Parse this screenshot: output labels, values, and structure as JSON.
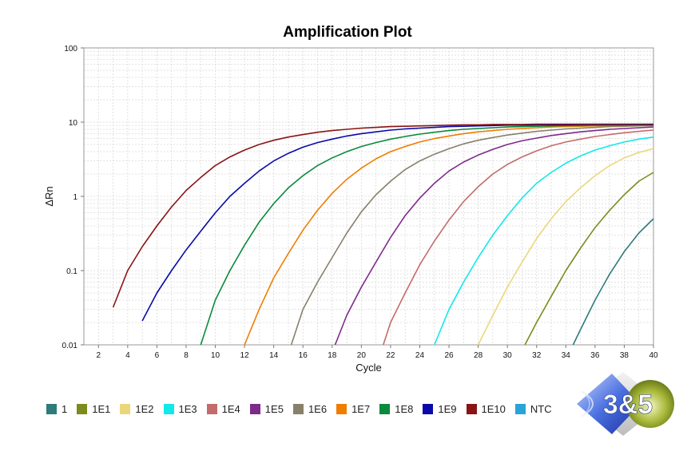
{
  "chart_data": {
    "type": "line",
    "title": "Amplification Plot",
    "xlabel": "Cycle",
    "ylabel": "ΔRn",
    "yscale": "log",
    "xlim": [
      1,
      40
    ],
    "ylim": [
      0.01,
      100
    ],
    "xticks": [
      2,
      4,
      6,
      8,
      10,
      12,
      14,
      16,
      18,
      20,
      22,
      24,
      26,
      28,
      30,
      32,
      34,
      36,
      38,
      40
    ],
    "yticks": [
      0.01,
      0.1,
      1,
      10,
      100
    ],
    "ytick_labels": [
      "0.01",
      "0.1",
      "1",
      "10",
      "100"
    ],
    "grid": true,
    "legend_position": "bottom-left",
    "series": [
      {
        "name": "1",
        "color": "#2e7b7b",
        "x": [
          34.5,
          35,
          36,
          37,
          38,
          39,
          40
        ],
        "y": [
          0.01,
          0.016,
          0.04,
          0.09,
          0.18,
          0.32,
          0.5
        ]
      },
      {
        "name": "1E1",
        "color": "#7e8a1e",
        "x": [
          31.2,
          32,
          33,
          34,
          35,
          36,
          37,
          38,
          39,
          40
        ],
        "y": [
          0.01,
          0.02,
          0.045,
          0.1,
          0.2,
          0.38,
          0.65,
          1.05,
          1.6,
          2.1
        ]
      },
      {
        "name": "1E2",
        "color": "#ebd77b",
        "x": [
          28,
          29,
          30,
          31,
          32,
          33,
          34,
          35,
          36,
          37,
          38,
          39,
          40
        ],
        "y": [
          0.01,
          0.025,
          0.06,
          0.13,
          0.27,
          0.5,
          0.85,
          1.3,
          1.9,
          2.6,
          3.3,
          3.9,
          4.4
        ]
      },
      {
        "name": "1E3",
        "color": "#12e8e8",
        "x": [
          25,
          26,
          27,
          28,
          29,
          30,
          31,
          32,
          33,
          34,
          35,
          36,
          37,
          38,
          39,
          40
        ],
        "y": [
          0.01,
          0.03,
          0.07,
          0.15,
          0.3,
          0.55,
          0.95,
          1.5,
          2.1,
          2.8,
          3.5,
          4.2,
          4.8,
          5.4,
          5.9,
          6.3
        ]
      },
      {
        "name": "1E4",
        "color": "#c46b6b",
        "x": [
          21.5,
          22,
          23,
          24,
          25,
          26,
          27,
          28,
          29,
          30,
          31,
          32,
          33,
          34,
          35,
          36,
          37,
          38,
          39,
          40
        ],
        "y": [
          0.01,
          0.02,
          0.05,
          0.12,
          0.25,
          0.48,
          0.85,
          1.35,
          2.0,
          2.7,
          3.4,
          4.1,
          4.8,
          5.4,
          5.9,
          6.4,
          6.8,
          7.2,
          7.5,
          7.8
        ]
      },
      {
        "name": "1E5",
        "color": "#7d2a8a",
        "x": [
          18.2,
          19,
          20,
          21,
          22,
          23,
          24,
          25,
          26,
          27,
          28,
          29,
          30,
          31,
          32,
          33,
          34,
          35,
          36,
          37,
          38,
          39,
          40
        ],
        "y": [
          0.01,
          0.025,
          0.06,
          0.13,
          0.28,
          0.55,
          0.95,
          1.5,
          2.2,
          2.9,
          3.6,
          4.3,
          5.0,
          5.6,
          6.1,
          6.6,
          7.0,
          7.4,
          7.7,
          8.0,
          8.2,
          8.4,
          8.6
        ]
      },
      {
        "name": "1E6",
        "color": "#87806a",
        "x": [
          15.2,
          16,
          17,
          18,
          19,
          20,
          21,
          22,
          23,
          24,
          25,
          26,
          27,
          28,
          29,
          30,
          31,
          32,
          33,
          34,
          35,
          36,
          37,
          38,
          39,
          40
        ],
        "y": [
          0.01,
          0.03,
          0.07,
          0.15,
          0.32,
          0.62,
          1.05,
          1.6,
          2.3,
          3.0,
          3.7,
          4.4,
          5.1,
          5.7,
          6.2,
          6.7,
          7.1,
          7.5,
          7.8,
          8.1,
          8.3,
          8.5,
          8.7,
          8.8,
          8.9,
          9.0
        ]
      },
      {
        "name": "1E7",
        "color": "#f07d00",
        "x": [
          12,
          13,
          14,
          15,
          16,
          17,
          18,
          19,
          20,
          21,
          22,
          23,
          24,
          25,
          26,
          27,
          28,
          29,
          30,
          31,
          32,
          33,
          34,
          35,
          36,
          37,
          38,
          39,
          40
        ],
        "y": [
          0.01,
          0.03,
          0.08,
          0.17,
          0.35,
          0.65,
          1.1,
          1.7,
          2.4,
          3.2,
          4.0,
          4.7,
          5.4,
          6.0,
          6.5,
          7.0,
          7.4,
          7.7,
          8.0,
          8.2,
          8.4,
          8.6,
          8.7,
          8.8,
          8.9,
          9.0,
          9.0,
          9.1,
          9.1
        ]
      },
      {
        "name": "1E8",
        "color": "#0a8a3c",
        "x": [
          9,
          10,
          11,
          12,
          13,
          14,
          15,
          16,
          17,
          18,
          19,
          20,
          21,
          22,
          23,
          24,
          25,
          26,
          27,
          28,
          29,
          30,
          31,
          32,
          33,
          34,
          35,
          36,
          37,
          38,
          39,
          40
        ],
        "y": [
          0.01,
          0.04,
          0.1,
          0.22,
          0.45,
          0.8,
          1.3,
          1.9,
          2.6,
          3.3,
          4.0,
          4.7,
          5.3,
          5.9,
          6.4,
          6.9,
          7.3,
          7.7,
          8.0,
          8.2,
          8.4,
          8.6,
          8.7,
          8.8,
          8.9,
          9.0,
          9.0,
          9.1,
          9.1,
          9.1,
          9.2,
          9.2
        ]
      },
      {
        "name": "1E9",
        "color": "#0a0aa8",
        "x": [
          5,
          6,
          7,
          8,
          9,
          10,
          11,
          12,
          13,
          14,
          15,
          16,
          17,
          18,
          19,
          20,
          21,
          22,
          23,
          24,
          25,
          26,
          27,
          28,
          29,
          30,
          31,
          32,
          33,
          34,
          35,
          36,
          37,
          38,
          39,
          40
        ],
        "y": [
          0.021,
          0.05,
          0.1,
          0.19,
          0.34,
          0.6,
          1.0,
          1.5,
          2.2,
          3.0,
          3.8,
          4.6,
          5.3,
          5.9,
          6.5,
          7.0,
          7.4,
          7.8,
          8.1,
          8.3,
          8.5,
          8.7,
          8.8,
          8.9,
          9.0,
          9.1,
          9.1,
          9.2,
          9.2,
          9.2,
          9.3,
          9.3,
          9.3,
          9.3,
          9.3,
          9.3
        ]
      },
      {
        "name": "1E10",
        "color": "#8a1414",
        "x": [
          3,
          4,
          5,
          6,
          7,
          8,
          9,
          10,
          11,
          12,
          13,
          14,
          15,
          16,
          17,
          18,
          19,
          20,
          21,
          22,
          23,
          24,
          25,
          26,
          27,
          28,
          29,
          30,
          31,
          32,
          33,
          34,
          35,
          36,
          37,
          38,
          39,
          40
        ],
        "y": [
          0.032,
          0.1,
          0.21,
          0.4,
          0.72,
          1.2,
          1.8,
          2.6,
          3.4,
          4.2,
          5.0,
          5.7,
          6.3,
          6.8,
          7.3,
          7.7,
          8.0,
          8.3,
          8.5,
          8.7,
          8.8,
          8.9,
          9.0,
          9.1,
          9.2,
          9.2,
          9.3,
          9.3,
          9.3,
          9.4,
          9.4,
          9.4,
          9.4,
          9.4,
          9.4,
          9.4,
          9.4,
          9.4
        ]
      },
      {
        "name": "NTC",
        "color": "#2aa3d6",
        "x": [],
        "y": []
      }
    ]
  }
}
